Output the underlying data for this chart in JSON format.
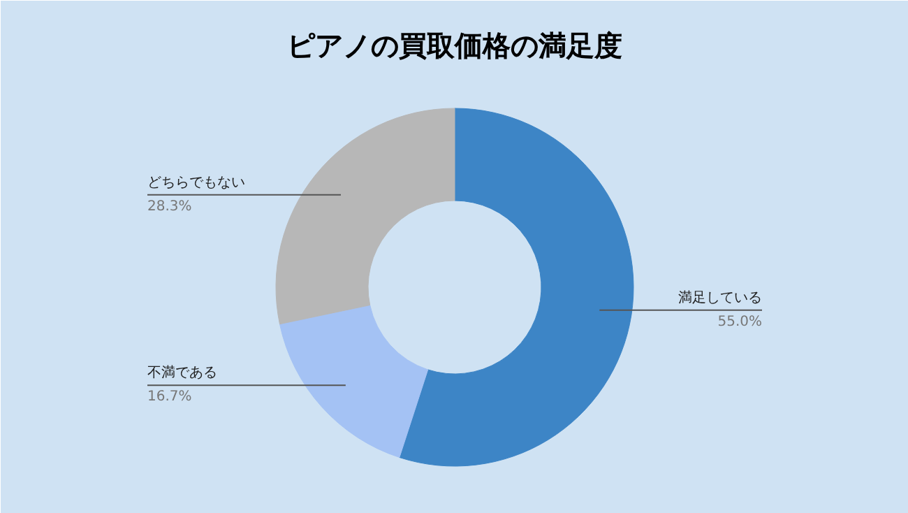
{
  "chart_data": {
    "type": "donut",
    "title": "ピアノの買取価格の満足度",
    "categories": [
      "満足している",
      "不満である",
      "どちらでもない"
    ],
    "values": [
      55.0,
      16.7,
      28.3
    ],
    "value_labels": [
      "55.0%",
      "16.7%",
      "28.3%"
    ],
    "colors": [
      "#3d85c6",
      "#a4c2f4",
      "#b7b7b7"
    ]
  }
}
